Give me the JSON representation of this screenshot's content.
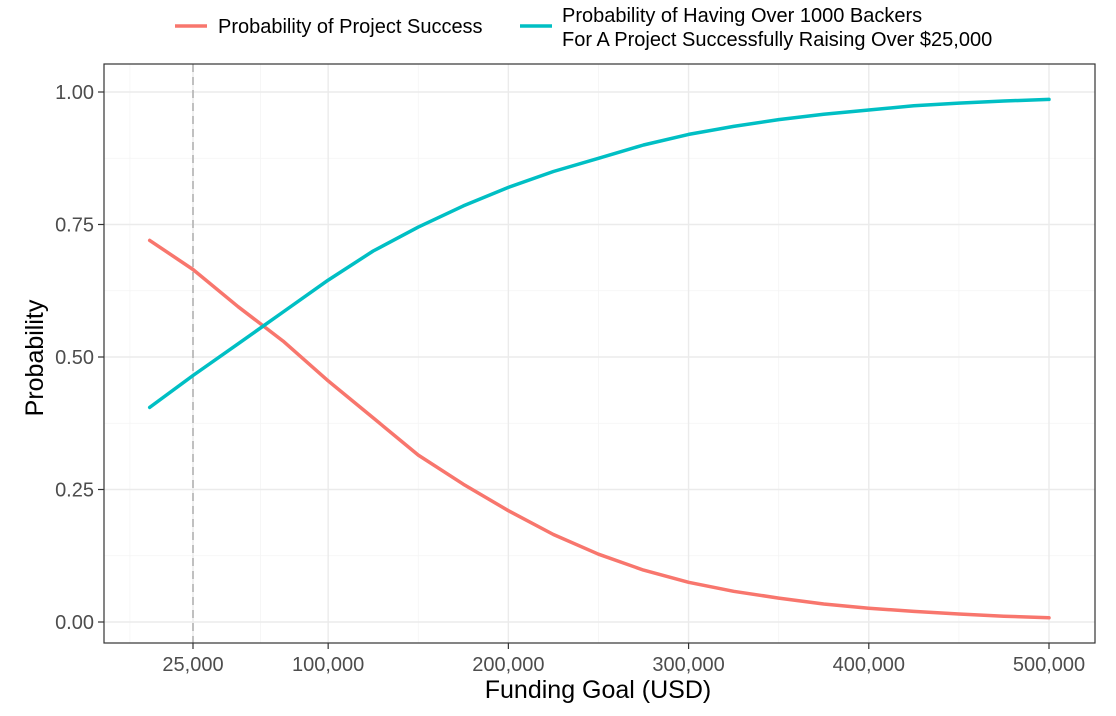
{
  "chart_data": {
    "type": "line",
    "xlabel": "Funding Goal (USD)",
    "ylabel": "Probability",
    "xlim": [
      -10000,
      510000
    ],
    "ylim": [
      -0.04,
      1.04
    ],
    "x_ticks": [
      25000,
      100000,
      200000,
      300000,
      400000,
      500000
    ],
    "x_tick_labels": [
      "25,000",
      "100,000",
      "200,000",
      "300,000",
      "400,000",
      "500,000"
    ],
    "y_ticks": [
      0,
      0.25,
      0.5,
      0.75,
      1.0
    ],
    "y_tick_labels": [
      "0.00",
      "0.25",
      "0.50",
      "0.75",
      "1.00"
    ],
    "grid": true,
    "legend_position": "top",
    "reference_line": {
      "x": 25000,
      "style": "dashed",
      "color": "#b3b3b3"
    },
    "series": [
      {
        "name": "Probability of Project Success",
        "color": "#F8766D",
        "x": [
          1000,
          25000,
          50000,
          75000,
          100000,
          125000,
          150000,
          175000,
          200000,
          225000,
          250000,
          275000,
          300000,
          325000,
          350000,
          375000,
          400000,
          425000,
          450000,
          475000,
          500000
        ],
        "y": [
          0.72,
          0.665,
          0.595,
          0.53,
          0.455,
          0.385,
          0.315,
          0.26,
          0.21,
          0.165,
          0.128,
          0.098,
          0.075,
          0.058,
          0.045,
          0.034,
          0.026,
          0.02,
          0.015,
          0.011,
          0.008
        ]
      },
      {
        "name": "Probability of Having Over 1000 Backers\nFor A Project Successfully Raising Over $25,000",
        "color": "#00BFC4",
        "x": [
          1000,
          25000,
          50000,
          75000,
          100000,
          125000,
          150000,
          175000,
          200000,
          225000,
          250000,
          275000,
          300000,
          325000,
          350000,
          375000,
          400000,
          425000,
          450000,
          475000,
          500000
        ],
        "y": [
          0.405,
          0.465,
          0.525,
          0.585,
          0.645,
          0.7,
          0.745,
          0.785,
          0.82,
          0.85,
          0.875,
          0.9,
          0.92,
          0.935,
          0.948,
          0.958,
          0.966,
          0.974,
          0.979,
          0.983,
          0.986
        ]
      }
    ]
  }
}
